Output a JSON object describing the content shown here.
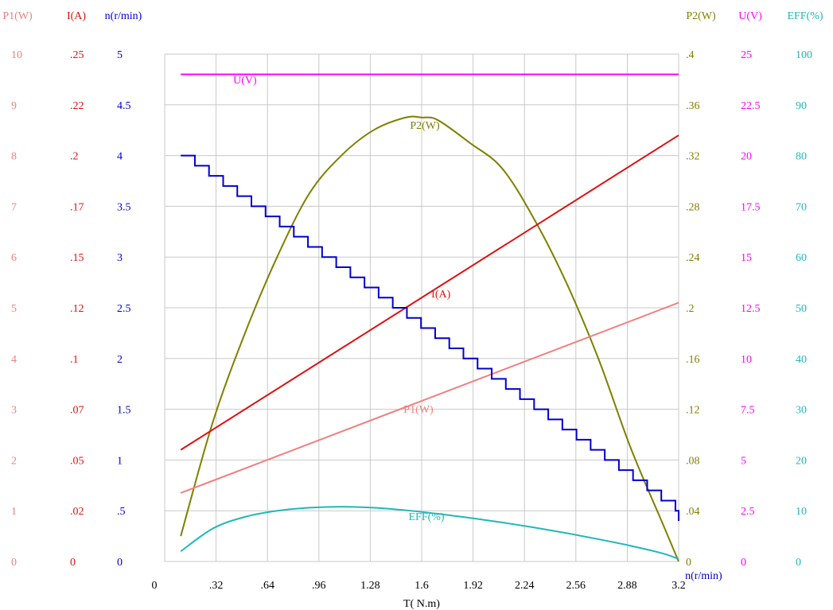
{
  "chart_data": {
    "type": "line",
    "xlabel": "T( N.m)",
    "x_ticks": [
      "0",
      ".32",
      ".64",
      ".96",
      "1.28",
      "1.6",
      "1.92",
      "2.24",
      "2.56",
      "2.88",
      "3.2"
    ],
    "xlim": [
      0,
      3.2
    ],
    "grid": true,
    "left_axes": [
      {
        "key": "P1",
        "label": "P1(W)",
        "color": "#f08080",
        "ticks": [
          "0",
          "1",
          "2",
          "3",
          "4",
          "5",
          "6",
          "7",
          "8",
          "9",
          "10"
        ],
        "ylim": [
          0,
          10
        ]
      },
      {
        "key": "I",
        "label": "I(A)",
        "color": "#e01010",
        "ticks": [
          "0",
          ".02",
          ".05",
          ".07",
          ".1",
          ".12",
          ".15",
          ".17",
          ".2",
          ".22",
          ".25"
        ],
        "ylim": [
          0,
          0.25
        ]
      },
      {
        "key": "n",
        "label": "n(r/min)",
        "color": "#0000cc",
        "ticks": [
          "0",
          ".5",
          "1",
          "1.5",
          "2",
          "2.5",
          "3",
          "3.5",
          "4",
          "4.5",
          "5"
        ],
        "ylim": [
          0,
          5
        ]
      }
    ],
    "right_axes": [
      {
        "key": "P2",
        "label": "P2(W)",
        "color": "#808000",
        "ticks": [
          "0",
          ".04",
          ".08",
          ".12",
          ".16",
          ".2",
          ".24",
          ".28",
          ".32",
          ".36",
          ".4"
        ],
        "ylim": [
          0,
          0.4
        ]
      },
      {
        "key": "U",
        "label": "U(V)",
        "color": "#ff00ff",
        "ticks": [
          "0",
          "2.5",
          "5",
          "7.5",
          "10",
          "12.5",
          "15",
          "17.5",
          "20",
          "22.5",
          "25"
        ],
        "ylim": [
          0,
          25
        ]
      },
      {
        "key": "EFF",
        "label": "EFF(%)",
        "color": "#20b8b8",
        "ticks": [
          "0",
          "10",
          "20",
          "30",
          "40",
          "50",
          "60",
          "70",
          "80",
          "90",
          "100"
        ],
        "ylim": [
          0,
          100
        ]
      }
    ],
    "series": [
      {
        "name": "U(V)",
        "axis": "U",
        "color": "#ff00ff",
        "x": [
          0.1,
          3.2
        ],
        "y": [
          24,
          24
        ]
      },
      {
        "name": "P2(W)",
        "axis": "P2",
        "color": "#808000",
        "x": [
          0.1,
          0.3,
          0.5,
          0.7,
          0.9,
          1.1,
          1.3,
          1.5,
          1.6,
          1.7,
          1.9,
          2.1,
          2.3,
          2.5,
          2.7,
          2.9,
          3.1,
          3.2
        ],
        "y": [
          0.02,
          0.11,
          0.18,
          0.24,
          0.29,
          0.32,
          0.34,
          0.35,
          0.35,
          0.348,
          0.33,
          0.31,
          0.27,
          0.22,
          0.16,
          0.09,
          0.03,
          0.0
        ]
      },
      {
        "name": "I(A)",
        "axis": "I",
        "color": "#e01010",
        "x": [
          0.1,
          3.2
        ],
        "y": [
          0.055,
          0.21
        ]
      },
      {
        "name": "P1(W)",
        "axis": "P1",
        "color": "#f08080",
        "x": [
          0.1,
          3.2
        ],
        "y": [
          1.35,
          5.1
        ]
      },
      {
        "name": "n(r/min)",
        "axis": "n",
        "color": "#0000cc",
        "x": [
          0.1,
          3.2
        ],
        "y": [
          4.0,
          0.0
        ],
        "step": 0.1
      },
      {
        "name": "EFF(%)",
        "axis": "EFF",
        "color": "#20b8b8",
        "x": [
          0.1,
          0.3,
          0.5,
          0.7,
          0.9,
          1.1,
          1.3,
          1.5,
          1.7,
          1.9,
          2.1,
          2.3,
          2.5,
          2.7,
          2.9,
          3.1,
          3.2
        ],
        "y": [
          2,
          6.5,
          8.8,
          10,
          10.6,
          10.8,
          10.6,
          10.1,
          9.4,
          8.6,
          7.7,
          6.7,
          5.6,
          4.4,
          3.1,
          1.6,
          0.5
        ]
      }
    ]
  }
}
